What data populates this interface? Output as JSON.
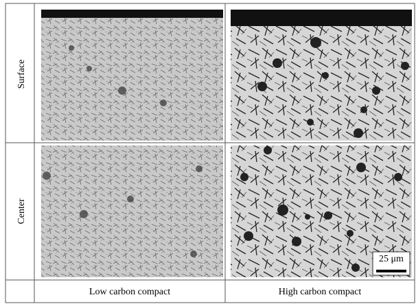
{
  "rows": [
    {
      "label": "Surface"
    },
    {
      "label": "Center"
    }
  ],
  "columns": [
    "Low carbon compact",
    "High carbon compact"
  ],
  "scale_bar": "25 μm"
}
